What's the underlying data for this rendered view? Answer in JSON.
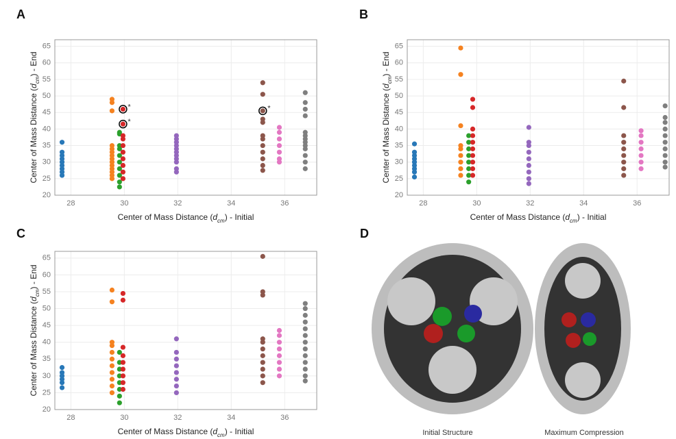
{
  "chart_data": [
    {
      "type": "scatter",
      "label": "A",
      "xlabel": [
        "Center of Mass Distance (",
        "d",
        "cm",
        ") - Initial"
      ],
      "ylabel": [
        "Center of Mass Distance (",
        "d",
        "cm",
        ") - End"
      ],
      "xlim": [
        27.4,
        37.2
      ],
      "ylim": [
        20,
        67
      ],
      "xticks": [
        28,
        30,
        32,
        34,
        36
      ],
      "yticks": [
        20,
        25,
        30,
        35,
        40,
        45,
        50,
        55,
        60,
        65
      ],
      "grid": true,
      "series": [
        {
          "color": "#2878b8",
          "x": 27.67,
          "values": [
            26,
            27,
            28,
            29,
            30,
            31,
            32,
            33,
            36
          ]
        },
        {
          "color": "#f58220",
          "x": 29.54,
          "values": [
            25,
            26,
            27,
            28,
            29,
            30,
            31,
            32,
            33,
            34,
            35,
            45.5,
            48,
            49
          ]
        },
        {
          "color": "#2ca02c",
          "x": 29.82,
          "values": [
            22.5,
            24,
            26,
            28,
            30,
            32,
            34,
            35,
            38.5,
            39
          ]
        },
        {
          "color": "#d62728",
          "x": 29.95,
          "values": [
            25,
            27,
            29,
            31,
            33,
            35,
            37,
            38,
            41.5,
            46
          ]
        },
        {
          "color": "#9467bd",
          "x": 31.95,
          "values": [
            27,
            28,
            30,
            31,
            32,
            33,
            34,
            35,
            36,
            37,
            38
          ]
        },
        {
          "color": "#8c564b",
          "x": 35.18,
          "values": [
            27.5,
            29,
            31,
            33,
            35,
            37,
            38,
            42,
            43,
            45.5,
            50.5,
            54
          ]
        },
        {
          "color": "#e377c2",
          "x": 35.8,
          "values": [
            30,
            31,
            33,
            35,
            37,
            39,
            40.5
          ]
        },
        {
          "color": "#7f7f7f",
          "x": 36.77,
          "values": [
            28,
            30,
            32,
            34,
            35,
            36,
            37,
            38,
            39,
            44,
            46,
            48,
            51
          ]
        }
      ],
      "annotations": [
        {
          "x": 29.95,
          "y": 46,
          "text": "*"
        },
        {
          "x": 29.95,
          "y": 41.5,
          "text": "*"
        },
        {
          "x": 35.18,
          "y": 45.5,
          "text": "*"
        }
      ]
    },
    {
      "type": "scatter",
      "label": "B",
      "xlabel": [
        "Center of Mass Distance (",
        "d",
        "cm",
        ") - Initial"
      ],
      "ylabel": [
        "Center of Mass Distance (",
        "d",
        "cm",
        ") - End"
      ],
      "xlim": [
        27.4,
        37.2
      ],
      "ylim": [
        20,
        67
      ],
      "xticks": [
        28,
        30,
        32,
        34,
        36
      ],
      "yticks": [
        20,
        25,
        30,
        35,
        40,
        45,
        50,
        55,
        60,
        65
      ],
      "grid": true,
      "series": [
        {
          "color": "#2878b8",
          "x": 27.67,
          "values": [
            25.5,
            27,
            28,
            29,
            30,
            31,
            32,
            33,
            35.5
          ]
        },
        {
          "color": "#f58220",
          "x": 29.4,
          "values": [
            26,
            28,
            30,
            32,
            34,
            35,
            41,
            56.5,
            64.5
          ]
        },
        {
          "color": "#2ca02c",
          "x": 29.7,
          "values": [
            24,
            26,
            28,
            30,
            32,
            34,
            36,
            38
          ]
        },
        {
          "color": "#d62728",
          "x": 29.85,
          "values": [
            26,
            28,
            30,
            32,
            34,
            36,
            38,
            40,
            46.5,
            49
          ]
        },
        {
          "color": "#9467bd",
          "x": 31.95,
          "values": [
            23.5,
            25,
            27,
            29,
            31,
            33,
            35,
            36,
            40.5
          ]
        },
        {
          "color": "#8c564b",
          "x": 35.5,
          "values": [
            26,
            28,
            30,
            32,
            34,
            36,
            38,
            46.5,
            54.5
          ]
        },
        {
          "color": "#e377c2",
          "x": 36.15,
          "values": [
            28,
            30,
            32,
            34,
            36,
            38,
            39.5
          ]
        },
        {
          "color": "#7f7f7f",
          "x": 37.05,
          "values": [
            28.5,
            30,
            32,
            34,
            36,
            38,
            40,
            42,
            43.5,
            47
          ]
        }
      ]
    },
    {
      "type": "scatter",
      "label": "C",
      "xlabel": [
        "Center of Mass Distance (",
        "d",
        "cm",
        ") - Initial"
      ],
      "ylabel": [
        "Center of Mass Distance (",
        "d",
        "cm",
        ") - End"
      ],
      "xlim": [
        27.4,
        37.2
      ],
      "ylim": [
        20,
        67
      ],
      "xticks": [
        28,
        30,
        32,
        34,
        36
      ],
      "yticks": [
        20,
        25,
        30,
        35,
        40,
        45,
        50,
        55,
        60,
        65
      ],
      "grid": true,
      "series": [
        {
          "color": "#2878b8",
          "x": 27.67,
          "values": [
            26.5,
            28,
            29,
            30,
            31,
            32.5
          ]
        },
        {
          "color": "#f58220",
          "x": 29.54,
          "values": [
            25,
            27,
            29,
            31,
            33,
            35,
            37,
            39,
            40,
            52,
            55.5
          ]
        },
        {
          "color": "#2ca02c",
          "x": 29.82,
          "values": [
            22,
            24,
            26,
            28,
            30,
            32,
            34,
            37
          ]
        },
        {
          "color": "#d62728",
          "x": 29.95,
          "values": [
            26,
            28,
            30,
            32,
            34,
            36,
            38.5,
            52.5,
            54.5
          ]
        },
        {
          "color": "#9467bd",
          "x": 31.95,
          "values": [
            25,
            27,
            29,
            31,
            33,
            35,
            37,
            41
          ]
        },
        {
          "color": "#8c564b",
          "x": 35.18,
          "values": [
            28,
            30,
            32,
            34,
            36,
            38,
            40,
            41,
            54,
            55,
            65.5
          ]
        },
        {
          "color": "#e377c2",
          "x": 35.8,
          "values": [
            30,
            32,
            34,
            36,
            38,
            40,
            42,
            43.5
          ]
        },
        {
          "color": "#7f7f7f",
          "x": 36.77,
          "values": [
            28.5,
            30,
            32,
            34,
            36,
            38,
            40,
            42,
            44,
            46,
            48,
            50,
            51.5
          ]
        }
      ]
    }
  ],
  "panel_d": {
    "label": "D",
    "captions": [
      "Initial Structure",
      "Maximum Compression"
    ]
  }
}
